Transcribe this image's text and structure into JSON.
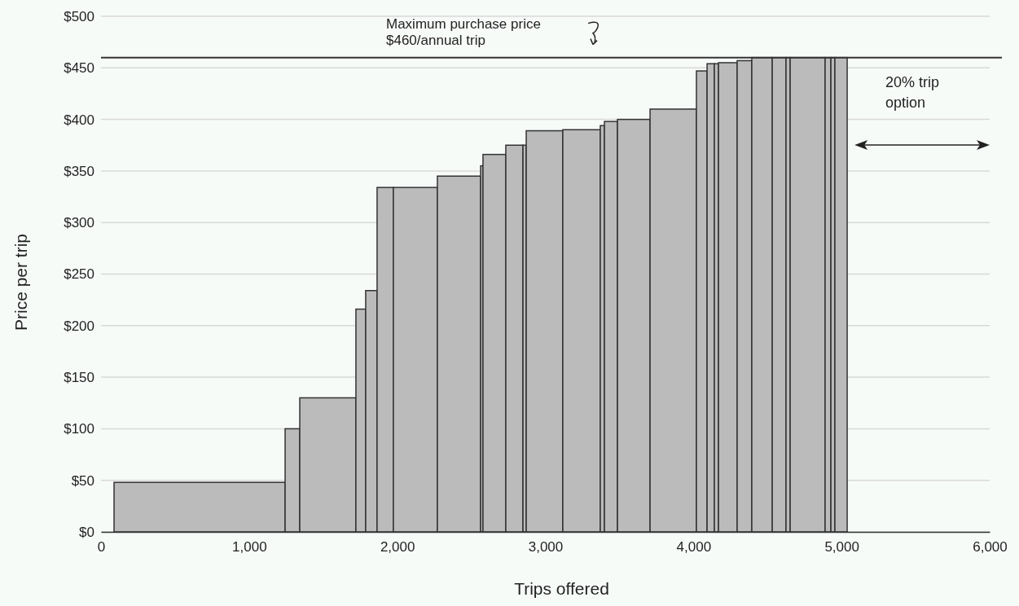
{
  "chart_data": {
    "type": "histogram",
    "xlabel": "Trips offered",
    "ylabel": "Price per trip",
    "color": "#bbbbbb",
    "bins": [
      88,
      1243,
      1342,
      1721,
      1787,
      1864,
      1974,
      2271,
      2563,
      2579,
      2733,
      2849,
      2871,
      3118,
      3371,
      3399,
      3487,
      3707,
      4020,
      4092,
      4141,
      4169,
      4295,
      4394,
      4532,
      4625,
      4653,
      4889,
      4928,
      4955,
      5038
    ],
    "values": [
      48,
      100,
      130,
      216,
      234,
      334,
      334,
      345,
      355,
      366,
      375,
      375,
      389,
      390,
      394,
      398,
      400,
      410,
      447,
      454,
      454,
      455,
      457,
      460,
      460,
      460,
      460,
      460,
      460,
      460
    ],
    "xlim": [
      0,
      6000
    ],
    "xticks": [
      0,
      {
        "value": 1000,
        "label": "1,000"
      },
      {
        "value": 2000,
        "label": "2,000"
      },
      {
        "value": 3000,
        "label": "3,000"
      },
      {
        "value": 4000,
        "label": "4,000"
      },
      {
        "value": 5000,
        "label": "5,000"
      },
      {
        "value": 6000,
        "label": "6,000"
      }
    ],
    "ylim": [
      0,
      500
    ],
    "yticks": [
      {
        "value": 0,
        "label": "$0"
      },
      {
        "value": 50,
        "label": "$50"
      },
      {
        "value": 100,
        "label": "$100"
      },
      {
        "value": 150,
        "label": "$150"
      },
      {
        "value": 200,
        "label": "$200"
      },
      {
        "value": 250,
        "label": "$250"
      },
      {
        "value": 300,
        "label": "$300"
      },
      {
        "value": 350,
        "label": "$350"
      },
      {
        "value": 400,
        "label": "$400"
      },
      {
        "value": 450,
        "label": "$450"
      },
      {
        "value": 500,
        "label": "$500"
      }
    ],
    "grid": "y",
    "ref_lines": [
      {
        "axis": "y",
        "value": 460,
        "label": "Maximum purchase price\n$460/annual trip",
        "color": "#333333"
      }
    ],
    "annotations": [
      "20% trip option"
    ]
  }
}
